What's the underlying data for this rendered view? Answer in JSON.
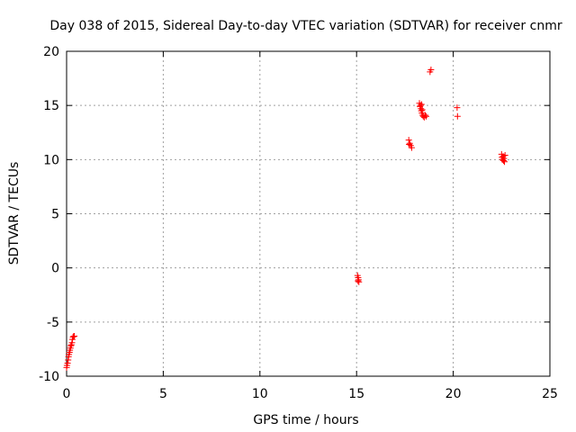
{
  "chart_data": {
    "type": "scatter",
    "title": "Day 038 of 2015, Sidereal Day-to-day VTEC variation (SDTVAR) for receiver cnmr",
    "xlabel": "GPS time / hours",
    "ylabel": "SDTVAR / TECUs",
    "xlim": [
      0,
      25
    ],
    "ylim": [
      -10,
      20
    ],
    "x_ticks": [
      0,
      5,
      10,
      15,
      20,
      25
    ],
    "y_ticks": [
      -10,
      -5,
      0,
      5,
      10,
      15,
      20
    ],
    "x_tick_labels": [
      "0",
      "5",
      "10",
      "15",
      "20",
      "25"
    ],
    "y_tick_labels": [
      "-10",
      "-5",
      "0",
      "5",
      "10",
      "15",
      "20"
    ],
    "grid": true,
    "marker": "+",
    "color": "#ff0000",
    "series": [
      {
        "name": "SDTVAR",
        "points": [
          [
            0.0,
            -9.2
          ],
          [
            0.02,
            -9.0
          ],
          [
            0.05,
            -8.8
          ],
          [
            0.08,
            -8.5
          ],
          [
            0.1,
            -8.2
          ],
          [
            0.12,
            -8.0
          ],
          [
            0.15,
            -7.8
          ],
          [
            0.17,
            -7.6
          ],
          [
            0.2,
            -7.4
          ],
          [
            0.22,
            -7.2
          ],
          [
            0.25,
            -7.1
          ],
          [
            0.28,
            -6.9
          ],
          [
            0.3,
            -6.6
          ],
          [
            0.33,
            -6.4
          ],
          [
            0.37,
            -6.3
          ],
          [
            0.4,
            -6.3
          ],
          [
            15.05,
            -0.7
          ],
          [
            15.08,
            -0.9
          ],
          [
            15.1,
            -1.1
          ],
          [
            15.12,
            -1.3
          ],
          [
            15.07,
            -1.2
          ],
          [
            17.7,
            11.8
          ],
          [
            17.75,
            11.5
          ],
          [
            17.8,
            11.3
          ],
          [
            17.85,
            11.1
          ],
          [
            17.72,
            11.4
          ],
          [
            18.25,
            15.2
          ],
          [
            18.28,
            14.9
          ],
          [
            18.3,
            15.0
          ],
          [
            18.33,
            14.7
          ],
          [
            18.35,
            14.5
          ],
          [
            18.38,
            14.3
          ],
          [
            18.4,
            14.6
          ],
          [
            18.42,
            14.1
          ],
          [
            18.45,
            14.0
          ],
          [
            18.5,
            13.9
          ],
          [
            18.55,
            14.1
          ],
          [
            18.6,
            14.0
          ],
          [
            18.36,
            15.1
          ],
          [
            18.8,
            18.1
          ],
          [
            18.85,
            18.3
          ],
          [
            20.2,
            14.8
          ],
          [
            20.22,
            14.0
          ],
          [
            22.5,
            10.5
          ],
          [
            22.52,
            10.2
          ],
          [
            22.55,
            10.0
          ],
          [
            22.58,
            10.3
          ],
          [
            22.6,
            9.9
          ],
          [
            22.62,
            10.1
          ],
          [
            22.65,
            9.8
          ],
          [
            22.68,
            10.4
          ]
        ]
      }
    ]
  }
}
